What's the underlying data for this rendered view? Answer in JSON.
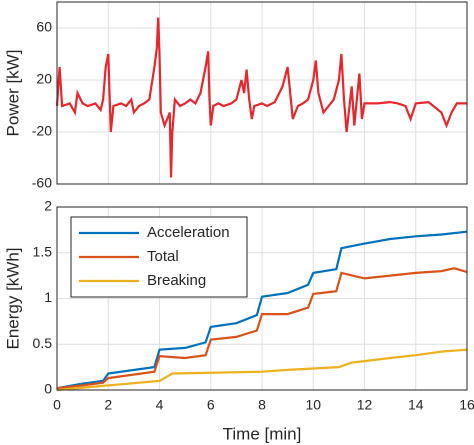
{
  "chart_data": [
    {
      "type": "line",
      "ylabel": "Power [kW]",
      "color": "#e8262b",
      "x": [
        0,
        0.1,
        0.2,
        0.5,
        0.7,
        0.8,
        1.0,
        1.2,
        1.5,
        1.7,
        1.8,
        1.9,
        2.0,
        2.05,
        2.1,
        2.2,
        2.5,
        2.7,
        2.9,
        3.0,
        3.2,
        3.4,
        3.6,
        3.8,
        3.9,
        3.95,
        4.0,
        4.05,
        4.2,
        4.3,
        4.4,
        4.45,
        4.5,
        4.6,
        4.8,
        5.0,
        5.2,
        5.4,
        5.6,
        5.8,
        5.9,
        5.95,
        6.0,
        6.1,
        6.3,
        6.5,
        6.8,
        7.0,
        7.2,
        7.3,
        7.4,
        7.5,
        7.6,
        7.7,
        8.0,
        8.2,
        8.5,
        8.8,
        9.0,
        9.1,
        9.2,
        9.4,
        9.6,
        9.8,
        10.0,
        10.1,
        10.2,
        10.4,
        10.6,
        10.8,
        11.0,
        11.1,
        11.2,
        11.3,
        11.5,
        11.6,
        11.8,
        11.9,
        12.0,
        12.5,
        13.0,
        13.3,
        13.6,
        13.8,
        14.0,
        14.5,
        15.0,
        15.2,
        15.4,
        15.6,
        16.0
      ],
      "values": [
        0,
        30,
        0,
        2,
        -5,
        10,
        2,
        0,
        2,
        -3,
        5,
        30,
        40,
        10,
        -20,
        0,
        2,
        0,
        5,
        -5,
        0,
        2,
        5,
        30,
        45,
        68,
        40,
        -5,
        -15,
        -10,
        -5,
        -55,
        -20,
        5,
        0,
        2,
        5,
        2,
        10,
        30,
        42,
        5,
        -15,
        0,
        2,
        0,
        2,
        5,
        20,
        10,
        28,
        5,
        -10,
        0,
        2,
        0,
        3,
        15,
        30,
        10,
        -10,
        0,
        2,
        5,
        20,
        35,
        10,
        -5,
        0,
        5,
        20,
        40,
        5,
        -20,
        15,
        -15,
        25,
        -10,
        2,
        2,
        3,
        2,
        0,
        -10,
        2,
        3,
        -5,
        -15,
        -5,
        2,
        2
      ],
      "xlim": [
        0,
        16
      ],
      "xticks": [
        0,
        2,
        4,
        6,
        8,
        10,
        12,
        14,
        16
      ],
      "ylim": [
        -60,
        80
      ],
      "yticks": [
        -60,
        -20,
        20,
        60
      ],
      "grid": true
    },
    {
      "type": "line",
      "ylabel": "Energy [kWh]",
      "xlabel": "Time [min]",
      "xlim": [
        0,
        16
      ],
      "xticks": [
        0,
        2,
        4,
        6,
        8,
        10,
        12,
        14,
        16
      ],
      "ylim": [
        0,
        2
      ],
      "yticks": [
        0,
        0.5,
        1,
        1.5,
        2
      ],
      "grid": true,
      "legend": "upper left",
      "series": [
        {
          "name": "Acceleration",
          "color": "#0072BD",
          "x": [
            0,
            1,
            1.8,
            2,
            3.8,
            4,
            5,
            5.8,
            6,
            7,
            7.8,
            8,
            9,
            9.8,
            10,
            10.9,
            11.1,
            12,
            13,
            14,
            15,
            16
          ],
          "values": [
            0.02,
            0.07,
            0.1,
            0.18,
            0.25,
            0.44,
            0.46,
            0.52,
            0.69,
            0.73,
            0.82,
            1.02,
            1.06,
            1.15,
            1.28,
            1.32,
            1.55,
            1.6,
            1.65,
            1.68,
            1.7,
            1.73
          ]
        },
        {
          "name": "Total",
          "color": "#D95319",
          "x": [
            0,
            1,
            1.8,
            2,
            3.8,
            4,
            5,
            5.8,
            6,
            7,
            7.8,
            8,
            9,
            9.8,
            10,
            10.9,
            11.1,
            12,
            13,
            14,
            15,
            15.5,
            16
          ],
          "values": [
            0.02,
            0.05,
            0.08,
            0.13,
            0.2,
            0.37,
            0.35,
            0.38,
            0.55,
            0.58,
            0.65,
            0.83,
            0.83,
            0.9,
            1.05,
            1.08,
            1.28,
            1.22,
            1.25,
            1.28,
            1.3,
            1.33,
            1.29
          ]
        },
        {
          "name": "Breaking",
          "color": "#EDB120",
          "x": [
            0,
            2,
            4,
            4.5,
            8,
            9,
            11,
            11.5,
            13,
            14,
            15,
            16
          ],
          "values": [
            0,
            0.05,
            0.1,
            0.18,
            0.2,
            0.22,
            0.25,
            0.3,
            0.35,
            0.38,
            0.42,
            0.44
          ]
        }
      ]
    }
  ]
}
